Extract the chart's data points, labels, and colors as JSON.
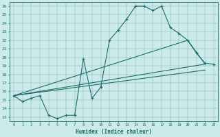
{
  "xlabel": "Humidex (Indice chaleur)",
  "bg_color": "#cceaea",
  "line_color": "#1a6b6b",
  "xlim": [
    -0.5,
    23.5
  ],
  "ylim": [
    12.5,
    26.5
  ],
  "xticks": [
    0,
    1,
    2,
    3,
    4,
    5,
    6,
    7,
    8,
    9,
    10,
    11,
    12,
    13,
    14,
    15,
    16,
    17,
    18,
    19,
    20,
    21,
    22,
    23
  ],
  "yticks": [
    13,
    14,
    15,
    16,
    17,
    18,
    19,
    20,
    21,
    22,
    23,
    24,
    25,
    26
  ],
  "main_line": {
    "x": [
      0,
      1,
      2,
      3,
      4,
      5,
      6,
      7,
      8,
      9,
      10,
      11,
      12,
      13,
      14,
      15,
      16,
      17,
      18,
      19,
      20,
      21,
      22,
      23
    ],
    "y": [
      15.5,
      14.8,
      15.2,
      15.5,
      13.2,
      12.8,
      13.2,
      13.2,
      19.8,
      15.2,
      16.5,
      22.0,
      23.2,
      24.5,
      26.0,
      26.0,
      25.5,
      26.0,
      23.5,
      22.8,
      22.0,
      20.5,
      19.3,
      19.2
    ]
  },
  "straight_lines": [
    {
      "x": [
        0,
        22
      ],
      "y": [
        15.5,
        19.2
      ]
    },
    {
      "x": [
        0,
        20,
        22
      ],
      "y": [
        15.5,
        22.0,
        19.2
      ]
    },
    {
      "x": [
        0,
        22
      ],
      "y": [
        15.5,
        18.5
      ]
    }
  ]
}
